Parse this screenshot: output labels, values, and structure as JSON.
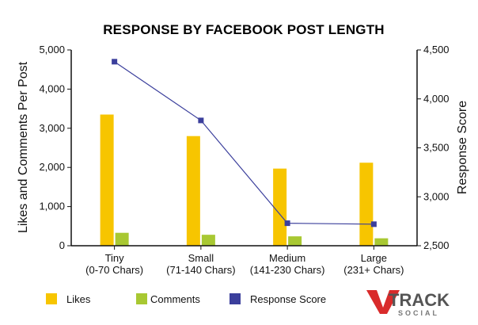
{
  "chart_data": {
    "type": "bar",
    "title": "RESPONSE BY FACEBOOK POST LENGTH",
    "categories": [
      [
        "Tiny",
        "(0-70 Chars)"
      ],
      [
        "Small",
        "(71-140 Chars)"
      ],
      [
        "Medium",
        "(141-230 Chars)"
      ],
      [
        "Large",
        "(231+ Chars)"
      ]
    ],
    "ylabel": "Likes and Comments Per Post",
    "y2label": "Response Score",
    "ylim": [
      0,
      5000
    ],
    "y2lim": [
      2500,
      4500
    ],
    "yticks": [
      "0",
      "1,000",
      "2,000",
      "3,000",
      "4,000",
      "5,000"
    ],
    "y2ticks": [
      "2,500",
      "3,000",
      "3,500",
      "4,000",
      "4,500"
    ],
    "series": [
      {
        "name": "Likes",
        "type": "bar",
        "axis": "left",
        "color": "#F7C500",
        "values": [
          3350,
          2800,
          1970,
          2120
        ]
      },
      {
        "name": "Comments",
        "type": "bar",
        "axis": "left",
        "color": "#A8C832",
        "values": [
          330,
          280,
          240,
          190
        ]
      },
      {
        "name": "Response Score",
        "type": "line",
        "axis": "right",
        "color": "#3B3F9C",
        "values": [
          4380,
          3780,
          2730,
          2720
        ]
      }
    ],
    "grid": false,
    "legend": "bottom-left"
  },
  "logo": {
    "text_main": "TRACK",
    "text_sub": "SOCIAL",
    "colors": {
      "v": "#D92B2B",
      "text": "#555555"
    }
  }
}
